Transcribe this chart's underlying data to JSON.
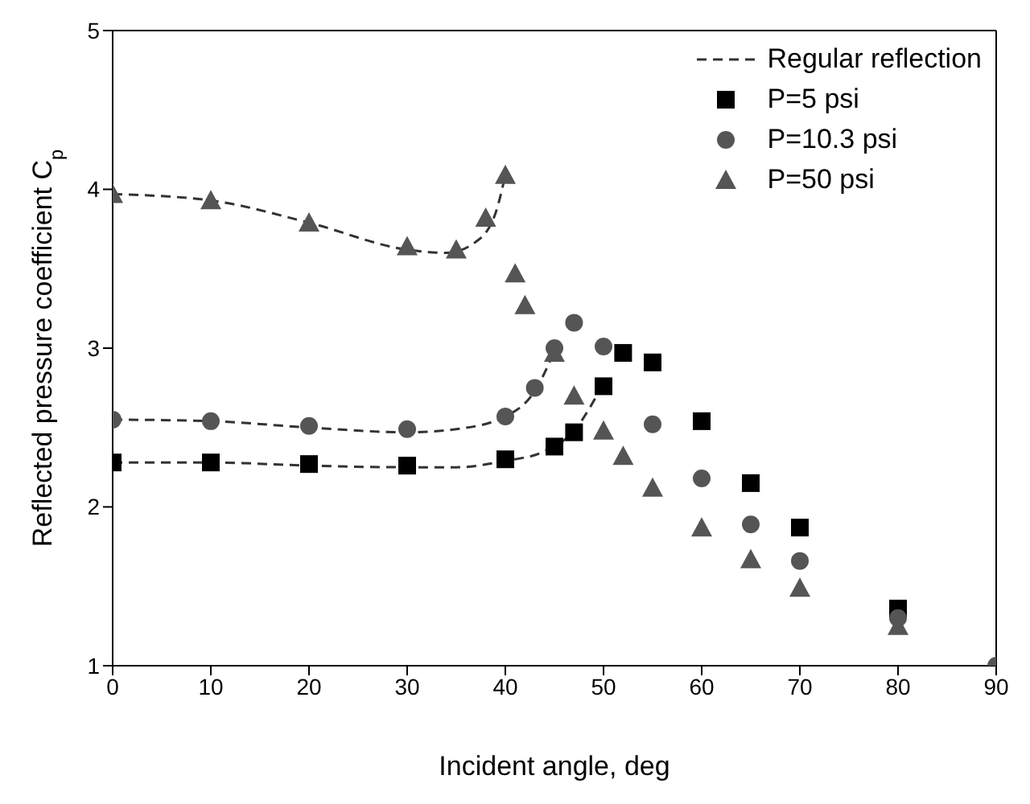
{
  "chart_data": {
    "type": "scatter",
    "xlabel": "Incident angle, deg",
    "ylabel": "Reflected pressure coefficient C$_{p}$",
    "xlim": [
      0,
      90
    ],
    "ylim": [
      1,
      5
    ],
    "xticks": [
      0,
      10,
      20,
      30,
      40,
      50,
      60,
      70,
      80,
      90
    ],
    "yticks": [
      1,
      2,
      3,
      4,
      5
    ],
    "grid": false,
    "legend": "top right",
    "series": [
      {
        "name": "Regular reflection",
        "type": "line",
        "line_style": "dashed",
        "marker": "none",
        "color": "#333333",
        "x": [
          0,
          10,
          20,
          30,
          35,
          40,
          44,
          47,
          50
        ],
        "values": [
          2.28,
          2.28,
          2.26,
          2.25,
          2.25,
          2.29,
          2.35,
          2.48,
          2.78
        ]
      },
      {
        "type": "line",
        "line_style": "dashed",
        "marker": "none",
        "color": "#333333",
        "x": [
          0,
          10,
          20,
          30,
          35,
          40,
          43,
          45
        ],
        "values": [
          2.55,
          2.54,
          2.5,
          2.47,
          2.49,
          2.57,
          2.73,
          2.98
        ]
      },
      {
        "type": "line",
        "line_style": "dashed",
        "marker": "none",
        "color": "#333333",
        "x": [
          0,
          10,
          20,
          30,
          34,
          37,
          39,
          40
        ],
        "values": [
          3.97,
          3.93,
          3.79,
          3.62,
          3.6,
          3.67,
          3.85,
          4.09
        ]
      },
      {
        "name": "P=5 psi",
        "marker": "square",
        "color": "#000000",
        "x": [
          0,
          10,
          20,
          30,
          40,
          45,
          47,
          50,
          52,
          55,
          60,
          65,
          70,
          80
        ],
        "values": [
          2.28,
          2.28,
          2.27,
          2.26,
          2.3,
          2.38,
          2.47,
          2.76,
          2.97,
          2.91,
          2.54,
          2.15,
          1.87,
          1.36
        ]
      },
      {
        "name": "P=10.3 psi",
        "marker": "circle",
        "color": "#555555",
        "x": [
          0,
          10,
          20,
          30,
          40,
          43,
          45,
          47,
          50,
          55,
          60,
          65,
          70,
          80,
          90
        ],
        "values": [
          2.55,
          2.54,
          2.51,
          2.49,
          2.57,
          2.75,
          3.0,
          3.16,
          3.01,
          2.52,
          2.18,
          1.89,
          1.66,
          1.3,
          1.0
        ]
      },
      {
        "name": "P=50 psi",
        "marker": "triangle",
        "color": "#555555",
        "x": [
          0,
          10,
          20,
          30,
          35,
          38,
          40,
          41,
          42,
          45,
          47,
          50,
          52,
          55,
          60,
          65,
          70,
          80
        ],
        "values": [
          3.97,
          3.93,
          3.79,
          3.64,
          3.62,
          3.82,
          4.09,
          3.47,
          3.27,
          2.97,
          2.7,
          2.48,
          2.32,
          2.12,
          1.87,
          1.67,
          1.49,
          1.25
        ]
      }
    ]
  }
}
